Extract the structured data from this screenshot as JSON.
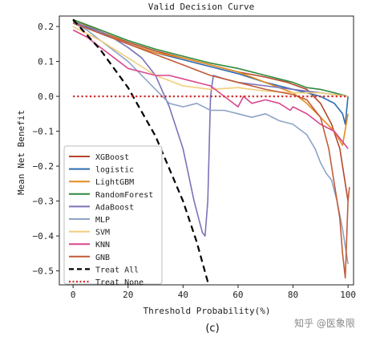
{
  "chart_data": {
    "type": "line",
    "title": "Valid Decision Curve",
    "xlabel": "Threshold Probability(%)",
    "ylabel": "Mean Net Benefit",
    "caption": "(c)",
    "xlim": [
      -5,
      102
    ],
    "ylim": [
      -0.54,
      0.23
    ],
    "xticks": [
      0,
      20,
      40,
      60,
      80,
      100
    ],
    "yticks": [
      0.2,
      0.1,
      0.0,
      -0.1,
      -0.2,
      -0.3,
      -0.4,
      -0.5
    ],
    "xtick_labels": [
      "0",
      "20",
      "40",
      "60",
      "80",
      "100"
    ],
    "ytick_labels": [
      "0.2",
      "0.1",
      "0.0",
      "−0.1",
      "−0.2",
      "−0.3",
      "−0.4",
      "−0.5"
    ],
    "grid": false,
    "legend_position": "lower-left",
    "series": [
      {
        "name": "XGBoost",
        "color": "#b5482a",
        "style": "solid",
        "points": [
          [
            0,
            0.22
          ],
          [
            10,
            0.185
          ],
          [
            20,
            0.155
          ],
          [
            30,
            0.13
          ],
          [
            40,
            0.11
          ],
          [
            50,
            0.09
          ],
          [
            55,
            0.08
          ],
          [
            60,
            0.07
          ],
          [
            70,
            0.055
          ],
          [
            78,
            0.04
          ],
          [
            85,
            0.02
          ],
          [
            90,
            -0.02
          ],
          [
            94,
            -0.08
          ],
          [
            97,
            -0.15
          ],
          [
            99,
            -0.25
          ],
          [
            100,
            -0.3
          ]
        ]
      },
      {
        "name": "logistic",
        "color": "#2e6bb0",
        "style": "solid",
        "points": [
          [
            0,
            0.215
          ],
          [
            10,
            0.18
          ],
          [
            20,
            0.15
          ],
          [
            30,
            0.125
          ],
          [
            40,
            0.105
          ],
          [
            50,
            0.085
          ],
          [
            60,
            0.065
          ],
          [
            70,
            0.04
          ],
          [
            80,
            0.02
          ],
          [
            85,
            0.01
          ],
          [
            90,
            0.0
          ],
          [
            95,
            -0.02
          ],
          [
            98,
            -0.05
          ],
          [
            99,
            -0.08
          ],
          [
            100,
            0.0
          ]
        ]
      },
      {
        "name": "LightGBM",
        "color": "#e58a1f",
        "style": "solid",
        "points": [
          [
            0,
            0.22
          ],
          [
            10,
            0.185
          ],
          [
            20,
            0.15
          ],
          [
            30,
            0.125
          ],
          [
            40,
            0.11
          ],
          [
            50,
            0.09
          ],
          [
            60,
            0.07
          ],
          [
            70,
            0.04
          ],
          [
            80,
            0.01
          ],
          [
            85,
            -0.02
          ],
          [
            90,
            -0.06
          ],
          [
            95,
            -0.1
          ],
          [
            98,
            -0.14
          ],
          [
            100,
            -0.05
          ]
        ]
      },
      {
        "name": "RandomForest",
        "color": "#2f8a3e",
        "style": "solid",
        "points": [
          [
            0,
            0.22
          ],
          [
            10,
            0.19
          ],
          [
            20,
            0.16
          ],
          [
            30,
            0.135
          ],
          [
            40,
            0.115
          ],
          [
            50,
            0.095
          ],
          [
            60,
            0.08
          ],
          [
            70,
            0.06
          ],
          [
            80,
            0.04
          ],
          [
            85,
            0.025
          ],
          [
            90,
            0.02
          ],
          [
            95,
            0.01
          ],
          [
            100,
            0.0
          ]
        ]
      },
      {
        "name": "AdaBoost",
        "color": "#7a73b8",
        "style": "solid",
        "points": [
          [
            0,
            0.21
          ],
          [
            5,
            0.2
          ],
          [
            10,
            0.185
          ],
          [
            15,
            0.165
          ],
          [
            20,
            0.14
          ],
          [
            25,
            0.11
          ],
          [
            30,
            0.06
          ],
          [
            35,
            -0.03
          ],
          [
            40,
            -0.15
          ],
          [
            44,
            -0.3
          ],
          [
            47,
            -0.39
          ],
          [
            48,
            -0.4
          ],
          [
            49,
            -0.3
          ],
          [
            50,
            0.0
          ],
          [
            51,
            0.06
          ],
          [
            55,
            0.05
          ],
          [
            60,
            0.04
          ],
          [
            70,
            0.03
          ],
          [
            80,
            0.02
          ],
          [
            90,
            0.01
          ],
          [
            100,
            0.0
          ]
        ]
      },
      {
        "name": "MLP",
        "color": "#8ea3c7",
        "style": "solid",
        "points": [
          [
            0,
            0.21
          ],
          [
            5,
            0.19
          ],
          [
            10,
            0.16
          ],
          [
            15,
            0.13
          ],
          [
            20,
            0.1
          ],
          [
            25,
            0.06
          ],
          [
            30,
            0.02
          ],
          [
            35,
            -0.02
          ],
          [
            40,
            -0.03
          ],
          [
            45,
            -0.02
          ],
          [
            50,
            -0.04
          ],
          [
            55,
            -0.04
          ],
          [
            60,
            -0.05
          ],
          [
            65,
            -0.06
          ],
          [
            70,
            -0.05
          ],
          [
            75,
            -0.07
          ],
          [
            80,
            -0.08
          ],
          [
            85,
            -0.11
          ],
          [
            88,
            -0.15
          ],
          [
            90,
            -0.19
          ],
          [
            92,
            -0.22
          ],
          [
            94,
            -0.24
          ],
          [
            96,
            -0.3
          ],
          [
            98,
            -0.38
          ],
          [
            100,
            -0.48
          ]
        ]
      },
      {
        "name": "SVM",
        "color": "#f2cd7a",
        "style": "solid",
        "points": [
          [
            0,
            0.2
          ],
          [
            10,
            0.16
          ],
          [
            20,
            0.11
          ],
          [
            30,
            0.06
          ],
          [
            40,
            0.03
          ],
          [
            50,
            0.02
          ],
          [
            60,
            0.025
          ],
          [
            70,
            0.015
          ],
          [
            80,
            0.01
          ],
          [
            90,
            0.01
          ],
          [
            100,
            0.0
          ]
        ]
      },
      {
        "name": "KNN",
        "color": "#d9478f",
        "style": "solid",
        "points": [
          [
            0,
            0.19
          ],
          [
            5,
            0.17
          ],
          [
            10,
            0.14
          ],
          [
            15,
            0.11
          ],
          [
            20,
            0.08
          ],
          [
            25,
            0.07
          ],
          [
            30,
            0.06
          ],
          [
            35,
            0.06
          ],
          [
            40,
            0.05
          ],
          [
            50,
            0.03
          ],
          [
            55,
            0.0
          ],
          [
            60,
            -0.03
          ],
          [
            62,
            0.0
          ],
          [
            65,
            -0.02
          ],
          [
            70,
            -0.01
          ],
          [
            75,
            -0.02
          ],
          [
            79,
            -0.04
          ],
          [
            80,
            -0.03
          ],
          [
            85,
            -0.05
          ],
          [
            90,
            -0.08
          ],
          [
            95,
            -0.1
          ],
          [
            98,
            -0.13
          ],
          [
            100,
            -0.15
          ]
        ]
      },
      {
        "name": "GNB",
        "color": "#c25c3a",
        "style": "solid",
        "points": [
          [
            0,
            0.21
          ],
          [
            10,
            0.18
          ],
          [
            20,
            0.15
          ],
          [
            30,
            0.12
          ],
          [
            40,
            0.09
          ],
          [
            50,
            0.06
          ],
          [
            60,
            0.04
          ],
          [
            70,
            0.02
          ],
          [
            80,
            0.005
          ],
          [
            85,
            -0.01
          ],
          [
            90,
            -0.06
          ],
          [
            93,
            -0.15
          ],
          [
            95,
            -0.25
          ],
          [
            97,
            -0.35
          ],
          [
            98,
            -0.45
          ],
          [
            99,
            -0.52
          ],
          [
            100,
            -0.3
          ],
          [
            100.5,
            -0.26
          ]
        ]
      },
      {
        "name": "Treat All",
        "color": "#000000",
        "style": "dashed",
        "points": [
          [
            0,
            0.22
          ],
          [
            10,
            0.133
          ],
          [
            20,
            0.025
          ],
          [
            30,
            -0.114
          ],
          [
            40,
            -0.3
          ],
          [
            45,
            -0.418
          ],
          [
            50,
            -0.56
          ]
        ]
      },
      {
        "name": "Treat None",
        "color": "#d42a2a",
        "style": "dotted",
        "points": [
          [
            0,
            0.0
          ],
          [
            100,
            0.0
          ]
        ]
      }
    ]
  },
  "watermark": "知乎 @医象限"
}
